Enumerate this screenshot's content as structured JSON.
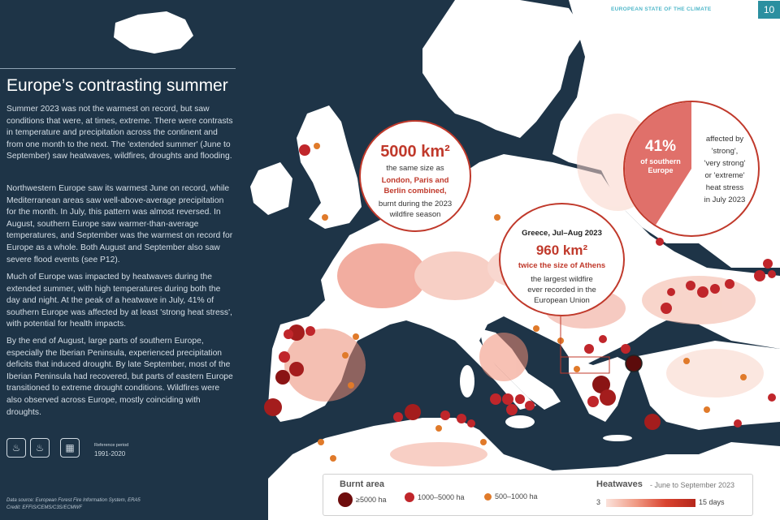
{
  "header": {
    "brand": "EUROPEAN STATE OF THE CLIMATE",
    "page_number": "10"
  },
  "article": {
    "title": "Europe’s contrasting summer",
    "paragraphs": [
      "Summer 2023 was not the warmest on record, but saw conditions that were, at times, extreme. There were contrasts in temperature and precipitation across the continent and from one month to the next. The 'extended summer' (June to September) saw heatwaves, wildfires, droughts and flooding.",
      "Northwestern Europe saw its warmest June on record, while Mediterranean areas saw well-above-average precipitation for the month. In July, this pattern was almost reversed. In August, southern Europe saw warmer-than-average temperatures, and September was the warmest on record for Europe as a whole. Both August and September also saw severe flood events (see P12).",
      "Much of Europe was impacted by heatwaves during the extended summer, with high temperatures during both the day and night. At the peak of a heatwave in July, 41% of southern Europe was affected by at least 'strong heat stress', with potential for health impacts.",
      "By the end of August, large parts of southern Europe, especially the Iberian Peninsula, experienced precipitation deficits that induced drought. By late September, most of the Iberian Peninsula had recovered, but parts of eastern Europe transitioned to extreme drought conditions. Wildfires were also observed across Europe, mostly coinciding with droughts."
    ],
    "icons": [
      "thermometer-icon",
      "fire-icon",
      "calendar-icon"
    ],
    "reference_label": "Reference period",
    "reference_value": "1991-2020",
    "data_source": "Data source: European Forest Fire Information System, ERA5",
    "credit": "Credit: EFFIS/CEMS/C3S/ECMWF"
  },
  "callouts": {
    "burnt": {
      "value": "5000 km²",
      "line1": "the same size as",
      "highlight": [
        "London, Paris and",
        "Berlin combined,"
      ],
      "rest": [
        "burnt during the 2023",
        "wildfire season"
      ]
    },
    "greece": {
      "title": "Greece, Jul–Aug 2023",
      "value": "960 km²",
      "subtitle": "twice the size of Athens",
      "desc": [
        "the largest wildfire",
        "ever recorded in the",
        "European Union"
      ]
    },
    "heat": {
      "percent": "41%",
      "percent_label": [
        "of southern",
        "Europe"
      ],
      "desc": [
        "affected by",
        "'strong',",
        "'very strong'",
        "or 'extreme'",
        "heat stress",
        "in July 2023"
      ],
      "fraction": 0.41
    }
  },
  "legend": {
    "burnt_title": "Burnt area",
    "items": [
      {
        "label": "≥5000 ha",
        "color": "#6e0d0d"
      },
      {
        "label": "1000–5000 ha",
        "color": "#c0262b"
      },
      {
        "label": "500–1000 ha",
        "color": "#e07a2a"
      }
    ],
    "heat_title": "Heatwaves",
    "heat_sub": "- June to September 2023",
    "heat_min": "3",
    "heat_max": "15 days"
  },
  "colors": {
    "sea": "#1e3447",
    "land": "#ffffff",
    "accent": "#c0392b"
  }
}
